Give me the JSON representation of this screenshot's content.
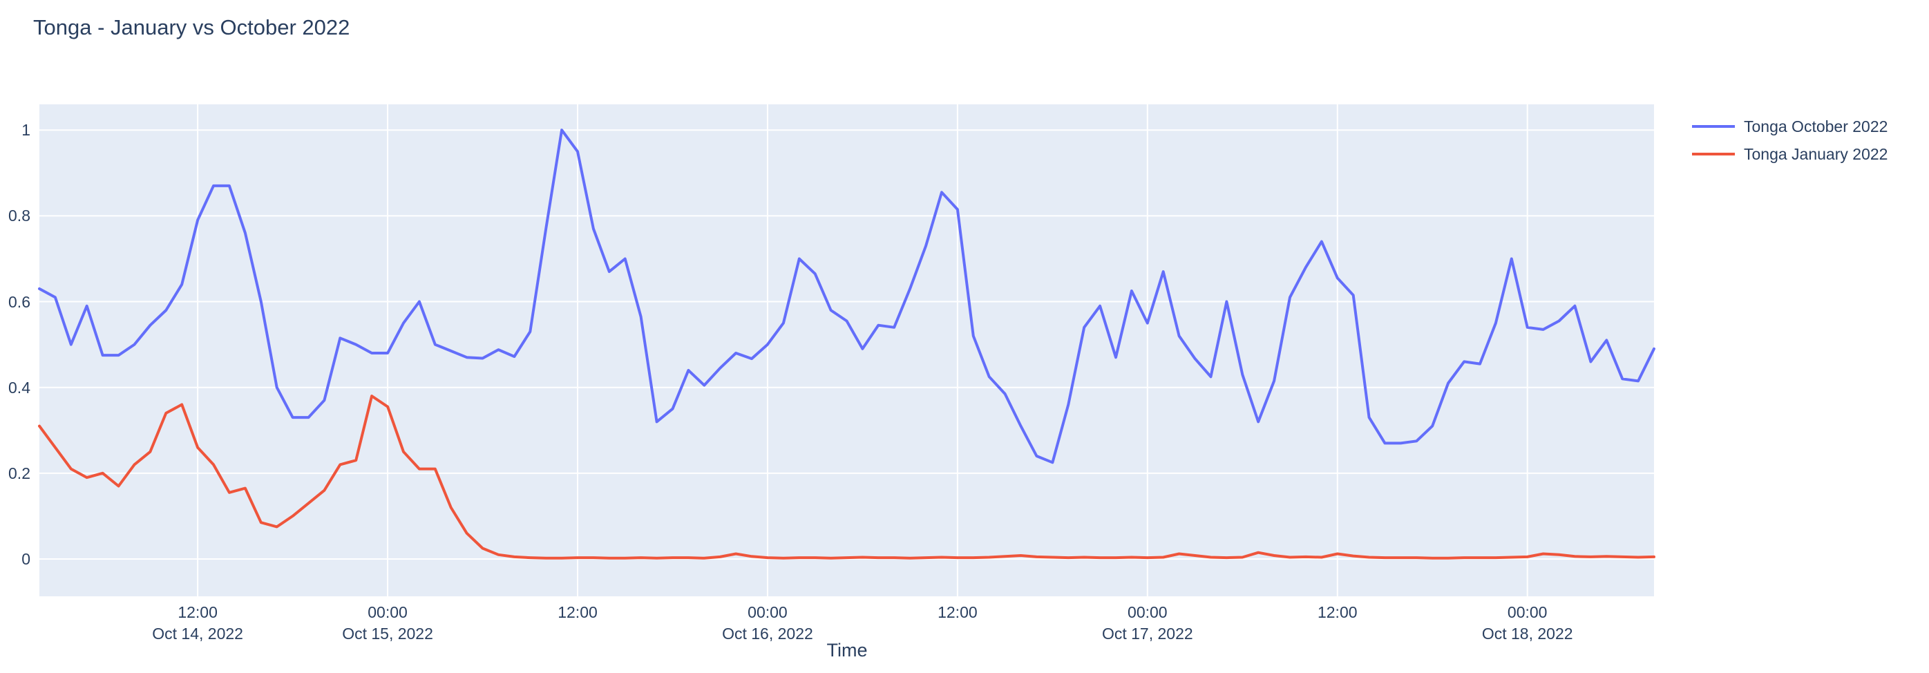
{
  "title": "Tonga - January vs October 2022",
  "colors": {
    "accent_blue": "#636EFA",
    "accent_red": "#EF553B",
    "plot_background": "#E5ECF6",
    "gridline": "#FFFFFF",
    "text": "#2a3f5f",
    "page_background": "#FFFFFF"
  },
  "chart_data": {
    "type": "line",
    "title": "Tonga - January vs October 2022",
    "xlabel": "Time",
    "ylabel": "",
    "grid": "on",
    "legend_position": "right-top-outside",
    "x_unit": "hours since Oct 14, 2022 00:00 (hourly samples, Oct 14 02:00 through Oct 18 08:00)",
    "x": [
      2,
      3,
      4,
      5,
      6,
      7,
      8,
      9,
      10,
      11,
      12,
      13,
      14,
      15,
      16,
      17,
      18,
      19,
      20,
      21,
      22,
      23,
      24,
      25,
      26,
      27,
      28,
      29,
      30,
      31,
      32,
      33,
      34,
      35,
      36,
      37,
      38,
      39,
      40,
      41,
      42,
      43,
      44,
      45,
      46,
      47,
      48,
      49,
      50,
      51,
      52,
      53,
      54,
      55,
      56,
      57,
      58,
      59,
      60,
      61,
      62,
      63,
      64,
      65,
      66,
      67,
      68,
      69,
      70,
      71,
      72,
      73,
      74,
      75,
      76,
      77,
      78,
      79,
      80,
      81,
      82,
      83,
      84,
      85,
      86,
      87,
      88,
      89,
      90,
      91,
      92,
      93,
      94,
      95,
      96,
      97,
      98,
      99,
      100,
      101,
      102,
      103,
      104
    ],
    "series": [
      {
        "name": "Tonga October 2022",
        "color": "#636EFA",
        "values": [
          0.63,
          0.61,
          0.5,
          0.59,
          0.475,
          0.475,
          0.5,
          0.545,
          0.58,
          0.64,
          0.79,
          0.87,
          0.87,
          0.76,
          0.6,
          0.4,
          0.33,
          0.33,
          0.37,
          0.515,
          0.5,
          0.48,
          0.48,
          0.55,
          0.6,
          0.5,
          0.485,
          0.47,
          0.468,
          0.488,
          0.472,
          0.53,
          0.77,
          1.0,
          0.95,
          0.77,
          0.67,
          0.7,
          0.565,
          0.32,
          0.35,
          0.44,
          0.405,
          0.445,
          0.48,
          0.467,
          0.5,
          0.55,
          0.7,
          0.665,
          0.58,
          0.555,
          0.49,
          0.545,
          0.54,
          0.63,
          0.73,
          0.855,
          0.815,
          0.52,
          0.425,
          0.385,
          0.31,
          0.24,
          0.225,
          0.36,
          0.54,
          0.59,
          0.47,
          0.625,
          0.55,
          0.67,
          0.52,
          0.467,
          0.425,
          0.6,
          0.43,
          0.32,
          0.415,
          0.61,
          0.68,
          0.74,
          0.655,
          0.615,
          0.33,
          0.27,
          0.27,
          0.275,
          0.31,
          0.41,
          0.46,
          0.455,
          0.55,
          0.7,
          0.54,
          0.535,
          0.555,
          0.59,
          0.46,
          0.51,
          0.42,
          0.415,
          0.49
        ]
      },
      {
        "name": "Tonga January 2022",
        "color": "#EF553B",
        "values": [
          0.31,
          0.26,
          0.21,
          0.19,
          0.2,
          0.17,
          0.22,
          0.25,
          0.34,
          0.36,
          0.26,
          0.22,
          0.155,
          0.165,
          0.085,
          0.075,
          0.1,
          0.13,
          0.16,
          0.22,
          0.23,
          0.38,
          0.355,
          0.25,
          0.21,
          0.21,
          0.12,
          0.06,
          0.025,
          0.01,
          0.005,
          0.003,
          0.002,
          0.002,
          0.003,
          0.003,
          0.002,
          0.002,
          0.003,
          0.002,
          0.003,
          0.003,
          0.002,
          0.005,
          0.012,
          0.006,
          0.003,
          0.002,
          0.003,
          0.003,
          0.002,
          0.003,
          0.004,
          0.003,
          0.003,
          0.002,
          0.003,
          0.004,
          0.003,
          0.003,
          0.004,
          0.006,
          0.008,
          0.005,
          0.004,
          0.003,
          0.004,
          0.003,
          0.003,
          0.004,
          0.003,
          0.004,
          0.012,
          0.008,
          0.004,
          0.003,
          0.004,
          0.015,
          0.008,
          0.004,
          0.005,
          0.004,
          0.012,
          0.007,
          0.004,
          0.003,
          0.003,
          0.003,
          0.002,
          0.002,
          0.003,
          0.003,
          0.003,
          0.004,
          0.005,
          0.012,
          0.01,
          0.006,
          0.005,
          0.006,
          0.005,
          0.004,
          0.005
        ]
      }
    ],
    "ylim": [
      -0.087,
      1.06
    ],
    "yticks": [
      "0",
      "0.2",
      "0.4",
      "0.6",
      "0.8",
      "1"
    ],
    "ytick_values": [
      0,
      0.2,
      0.4,
      0.6,
      0.8,
      1
    ],
    "xticks": [
      {
        "hour": 12,
        "line1": "12:00",
        "line2": "Oct 14, 2022"
      },
      {
        "hour": 24,
        "line1": "00:00",
        "line2": "Oct 15, 2022"
      },
      {
        "hour": 36,
        "line1": "12:00",
        "line2": ""
      },
      {
        "hour": 48,
        "line1": "00:00",
        "line2": "Oct 16, 2022"
      },
      {
        "hour": 60,
        "line1": "12:00",
        "line2": ""
      },
      {
        "hour": 72,
        "line1": "00:00",
        "line2": "Oct 17, 2022"
      },
      {
        "hour": 84,
        "line1": "12:00",
        "line2": ""
      },
      {
        "hour": 96,
        "line1": "00:00",
        "line2": "Oct 18, 2022"
      }
    ]
  },
  "legend": {
    "items": [
      "Tonga October 2022",
      "Tonga January 2022"
    ]
  }
}
